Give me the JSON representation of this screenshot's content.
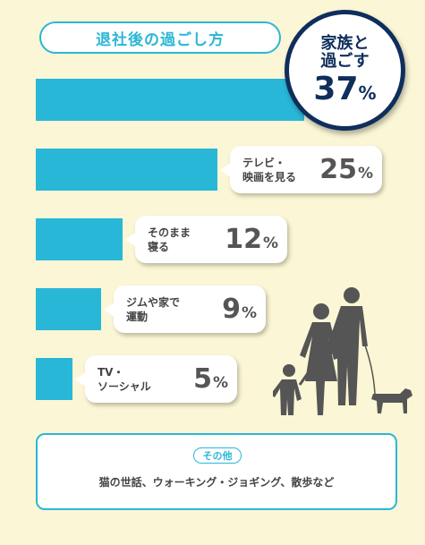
{
  "header": {
    "title": "退社後の過ごし方"
  },
  "chart_data": {
    "type": "bar",
    "orientation": "horizontal",
    "unit": "%",
    "items": [
      {
        "label": "家族と\n過ごす",
        "value": 37,
        "highlight": true
      },
      {
        "label": "テレビ・\n映画を見る",
        "value": 25
      },
      {
        "label": "そのまま\n寝る",
        "value": 12
      },
      {
        "label": "ジムや家で\n運動",
        "value": 9
      },
      {
        "label": "TV・\nソーシャル",
        "value": 5
      }
    ],
    "colors": {
      "bar": "#29b7d8",
      "highlight_border": "#0f2e5c",
      "background": "#fbf6d5"
    }
  },
  "other": {
    "badge": "その他",
    "text": "猫の世話、ウォーキング・ジョギング、散歩など"
  },
  "illustration": {
    "icon": "family-walking-dog-icon"
  }
}
